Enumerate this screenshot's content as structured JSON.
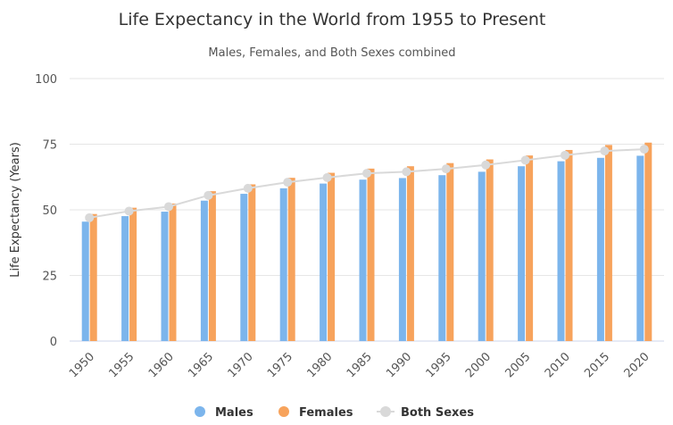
{
  "chart_data": {
    "type": "bar",
    "title": "Life Expectancy in the World from 1955 to Present",
    "subtitle": "Males, Females, and Both Sexes combined",
    "ylabel": "Life Expectancy (Years)",
    "xlabel": "",
    "ylim": [
      0,
      100
    ],
    "yticks": [
      0,
      25,
      50,
      75,
      100
    ],
    "grid": true,
    "legend_position": "bottom",
    "categories": [
      "1950",
      "1955",
      "1960",
      "1965",
      "1970",
      "1975",
      "1980",
      "1985",
      "1990",
      "1995",
      "2000",
      "2005",
      "2010",
      "2015",
      "2020"
    ],
    "series": [
      {
        "name": "Males",
        "kind": "bar",
        "color": "#7cb5ec",
        "values": [
          45.5,
          47.6,
          49.3,
          53.5,
          56.1,
          58.2,
          60,
          61.5,
          62.1,
          63.2,
          64.5,
          66.6,
          68.5,
          69.8,
          70.6
        ]
      },
      {
        "name": "Females",
        "kind": "bar",
        "color": "#f7a35c",
        "values": [
          48.4,
          50.8,
          52.4,
          57.1,
          59.7,
          62.2,
          64.1,
          65.7,
          66.6,
          67.8,
          69.2,
          70.7,
          72.8,
          74.7,
          75.6
        ]
      },
      {
        "name": "Both Sexes",
        "kind": "line",
        "color": "#d9d9d9",
        "values": [
          47,
          49.5,
          51.2,
          55.5,
          58.2,
          60.5,
          62.3,
          63.9,
          64.5,
          65.6,
          67.1,
          68.9,
          70.8,
          72.4,
          73.1
        ]
      }
    ]
  }
}
